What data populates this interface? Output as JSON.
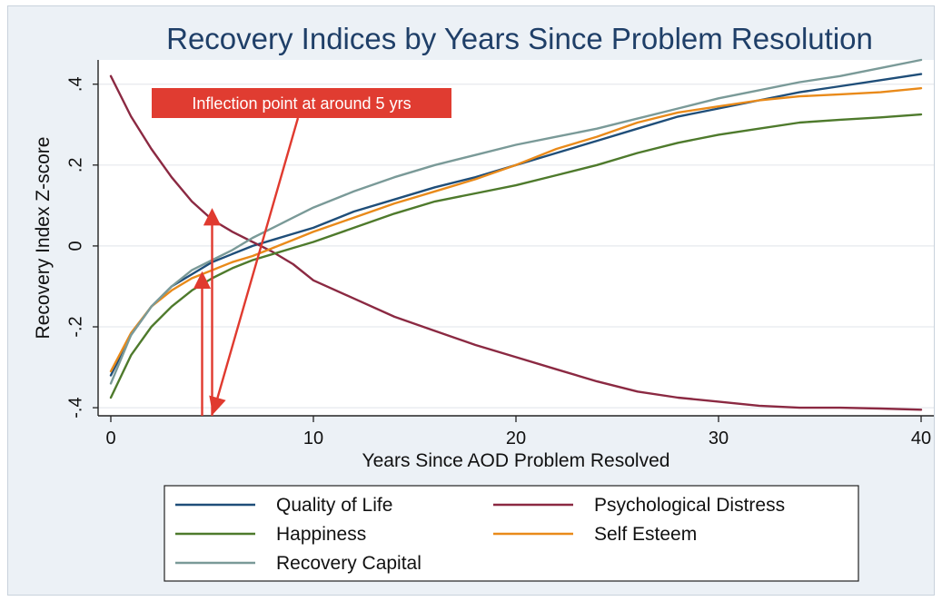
{
  "chart_data": {
    "type": "line",
    "title": "Recovery Indices by Years Since Problem Resolution",
    "xlabel": "Years Since AOD Problem Resolved",
    "ylabel": "Recovery Index Z-score",
    "xlim": [
      0,
      40
    ],
    "ylim": [
      -0.42,
      0.46
    ],
    "x_ticks": [
      0,
      10,
      20,
      30,
      40
    ],
    "x_tick_labels": [
      "0",
      "10",
      "20",
      "30",
      "40"
    ],
    "y_ticks": [
      -0.4,
      -0.2,
      0,
      0.2,
      0.4
    ],
    "y_tick_labels": [
      "-.4",
      "-.2",
      "0",
      ".2",
      ".4"
    ],
    "grid": true,
    "legend_position": "bottom",
    "x": [
      0,
      1,
      2,
      3,
      4,
      5,
      6,
      7,
      8,
      9,
      10,
      12,
      14,
      16,
      18,
      20,
      22,
      24,
      26,
      28,
      30,
      32,
      34,
      36,
      38,
      40
    ],
    "series": [
      {
        "name": "Quality of Life",
        "color": "#1f4e79",
        "values": [
          -0.32,
          -0.22,
          -0.15,
          -0.1,
          -0.07,
          -0.04,
          -0.02,
          0.0,
          0.015,
          0.03,
          0.045,
          0.085,
          0.115,
          0.145,
          0.17,
          0.2,
          0.23,
          0.26,
          0.29,
          0.32,
          0.34,
          0.36,
          0.38,
          0.395,
          0.41,
          0.425
        ]
      },
      {
        "name": "Psychological Distress",
        "color": "#8b2942",
        "values": [
          0.42,
          0.32,
          0.24,
          0.17,
          0.11,
          0.065,
          0.035,
          0.01,
          -0.015,
          -0.045,
          -0.085,
          -0.13,
          -0.175,
          -0.21,
          -0.245,
          -0.275,
          -0.305,
          -0.335,
          -0.36,
          -0.375,
          -0.385,
          -0.395,
          -0.4,
          -0.4,
          -0.402,
          -0.405
        ]
      },
      {
        "name": "Happiness",
        "color": "#4e7a2c",
        "values": [
          -0.375,
          -0.27,
          -0.2,
          -0.15,
          -0.11,
          -0.08,
          -0.055,
          -0.035,
          -0.02,
          -0.005,
          0.01,
          0.045,
          0.08,
          0.11,
          0.13,
          0.15,
          0.175,
          0.2,
          0.23,
          0.255,
          0.275,
          0.29,
          0.305,
          0.312,
          0.318,
          0.325
        ]
      },
      {
        "name": "Self Esteem",
        "color": "#e98a1a",
        "values": [
          -0.31,
          -0.215,
          -0.15,
          -0.11,
          -0.08,
          -0.06,
          -0.04,
          -0.025,
          -0.005,
          0.015,
          0.035,
          0.07,
          0.105,
          0.135,
          0.165,
          0.2,
          0.24,
          0.27,
          0.305,
          0.33,
          0.345,
          0.36,
          0.37,
          0.375,
          0.38,
          0.39
        ]
      },
      {
        "name": "Recovery Capital",
        "color": "#7a9a98",
        "values": [
          -0.34,
          -0.22,
          -0.15,
          -0.1,
          -0.06,
          -0.035,
          -0.01,
          0.02,
          0.045,
          0.07,
          0.095,
          0.135,
          0.17,
          0.2,
          0.225,
          0.25,
          0.27,
          0.29,
          0.315,
          0.34,
          0.365,
          0.385,
          0.405,
          0.42,
          0.44,
          0.46
        ]
      }
    ],
    "annotations": [
      {
        "text": "Inflection point at around 5 yrs",
        "x": 5
      }
    ]
  }
}
